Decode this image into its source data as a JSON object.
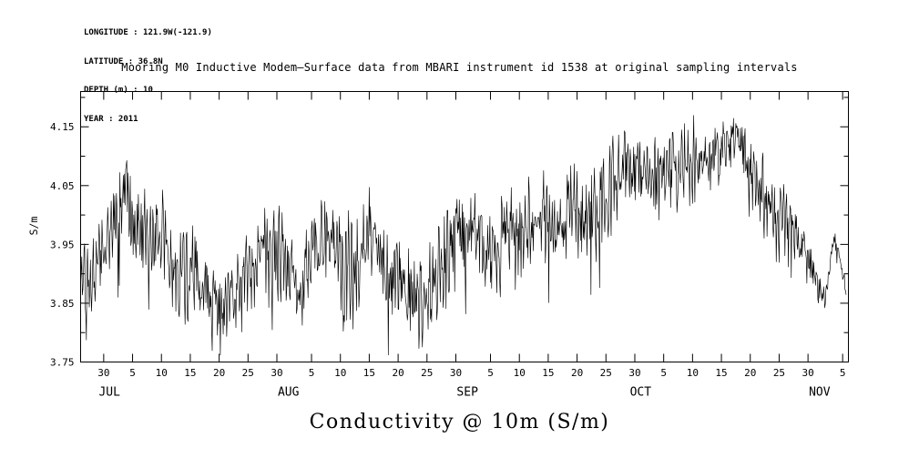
{
  "header": {
    "lines": [
      "LONGITUDE : 121.9W(-121.9)",
      "LATITUDE : 36.8N",
      "DEPTH (m) : 10",
      "YEAR : 2011"
    ]
  },
  "title": "Mooring M0 Inductive Modem—Surface data from MBARI instrument id 1538 at original sampling intervals",
  "caption": "Conductivity @ 10m (S/m)",
  "colors": {
    "line": "#000000",
    "frame": "#000000",
    "text": "#000000",
    "background": "#ffffff"
  },
  "chart_data": {
    "type": "line",
    "title": "Mooring M0 Inductive Modem—Surface data from MBARI instrument id 1538 at original sampling intervals",
    "ylabel": "S/m",
    "xlabel": "Conductivity @ 10m (S/m)",
    "grid": false,
    "legend": false,
    "x_range_days": [
      0,
      133
    ],
    "x_axis_note": "day 0 = 26 JUN 2011, axis ends ~6 NOV 2011",
    "ylim": [
      3.75,
      4.21
    ],
    "y_ticks": [
      {
        "value": 3.75,
        "label": "3.75"
      },
      {
        "value": 3.85,
        "label": "3.85"
      },
      {
        "value": 3.95,
        "label": "3.95"
      },
      {
        "value": 4.05,
        "label": "4.05"
      },
      {
        "value": 4.15,
        "label": "4.15"
      }
    ],
    "y_minor_ticks": [
      3.8,
      3.9,
      4.0,
      4.1,
      4.2
    ],
    "x_ticks": [
      {
        "day": 4,
        "label": "30"
      },
      {
        "day": 9,
        "label": "5"
      },
      {
        "day": 14,
        "label": "10"
      },
      {
        "day": 19,
        "label": "15"
      },
      {
        "day": 24,
        "label": "20"
      },
      {
        "day": 29,
        "label": "25"
      },
      {
        "day": 34,
        "label": "30"
      },
      {
        "day": 40,
        "label": "5"
      },
      {
        "day": 45,
        "label": "10"
      },
      {
        "day": 50,
        "label": "15"
      },
      {
        "day": 55,
        "label": "20"
      },
      {
        "day": 60,
        "label": "25"
      },
      {
        "day": 65,
        "label": "30"
      },
      {
        "day": 71,
        "label": "5"
      },
      {
        "day": 76,
        "label": "10"
      },
      {
        "day": 81,
        "label": "15"
      },
      {
        "day": 86,
        "label": "20"
      },
      {
        "day": 91,
        "label": "25"
      },
      {
        "day": 96,
        "label": "30"
      },
      {
        "day": 101,
        "label": "5"
      },
      {
        "day": 106,
        "label": "10"
      },
      {
        "day": 111,
        "label": "15"
      },
      {
        "day": 116,
        "label": "20"
      },
      {
        "day": 121,
        "label": "25"
      },
      {
        "day": 126,
        "label": "30"
      },
      {
        "day": 132,
        "label": "5"
      }
    ],
    "month_labels": [
      {
        "day": 5,
        "label": "JUL"
      },
      {
        "day": 36,
        "label": "AUG"
      },
      {
        "day": 67,
        "label": "SEP"
      },
      {
        "day": 97,
        "label": "OCT"
      },
      {
        "day": 128,
        "label": "NOV"
      }
    ],
    "series": [
      {
        "name": "Conductivity @ 10m",
        "units": "S/m",
        "trend_day_value_amplitude": [
          [
            0,
            3.89,
            0.05
          ],
          [
            2,
            3.9,
            0.06
          ],
          [
            4,
            3.93,
            0.07
          ],
          [
            6,
            3.99,
            0.08
          ],
          [
            8,
            4.02,
            0.09
          ],
          [
            10,
            3.98,
            0.08
          ],
          [
            12,
            3.96,
            0.08
          ],
          [
            14,
            3.97,
            0.08
          ],
          [
            16,
            3.91,
            0.07
          ],
          [
            18,
            3.89,
            0.07
          ],
          [
            20,
            3.91,
            0.07
          ],
          [
            22,
            3.87,
            0.06
          ],
          [
            24,
            3.84,
            0.06
          ],
          [
            26,
            3.85,
            0.06
          ],
          [
            28,
            3.88,
            0.07
          ],
          [
            30,
            3.91,
            0.07
          ],
          [
            32,
            3.94,
            0.08
          ],
          [
            34,
            3.95,
            0.08
          ],
          [
            36,
            3.92,
            0.08
          ],
          [
            38,
            3.86,
            0.07
          ],
          [
            40,
            3.94,
            0.08
          ],
          [
            42,
            3.97,
            0.07
          ],
          [
            44,
            3.95,
            0.08
          ],
          [
            46,
            3.9,
            0.08
          ],
          [
            48,
            3.91,
            0.08
          ],
          [
            50,
            3.97,
            0.08
          ],
          [
            52,
            3.94,
            0.07
          ],
          [
            54,
            3.9,
            0.08
          ],
          [
            56,
            3.88,
            0.08
          ],
          [
            58,
            3.86,
            0.07
          ],
          [
            60,
            3.86,
            0.07
          ],
          [
            62,
            3.91,
            0.07
          ],
          [
            64,
            3.94,
            0.08
          ],
          [
            66,
            3.96,
            0.08
          ],
          [
            68,
            3.98,
            0.07
          ],
          [
            70,
            3.94,
            0.08
          ],
          [
            72,
            3.93,
            0.08
          ],
          [
            74,
            3.99,
            0.07
          ],
          [
            76,
            3.96,
            0.08
          ],
          [
            78,
            3.97,
            0.08
          ],
          [
            80,
            4.0,
            0.08
          ],
          [
            82,
            3.97,
            0.08
          ],
          [
            84,
            4.0,
            0.08
          ],
          [
            86,
            4.02,
            0.08
          ],
          [
            88,
            4.0,
            0.07
          ],
          [
            90,
            4.02,
            0.07
          ],
          [
            92,
            4.05,
            0.07
          ],
          [
            94,
            4.07,
            0.07
          ],
          [
            96,
            4.08,
            0.06
          ],
          [
            98,
            4.08,
            0.06
          ],
          [
            100,
            4.06,
            0.07
          ],
          [
            102,
            4.06,
            0.07
          ],
          [
            104,
            4.09,
            0.06
          ],
          [
            106,
            4.08,
            0.07
          ],
          [
            108,
            4.09,
            0.06
          ],
          [
            110,
            4.11,
            0.05
          ],
          [
            112,
            4.12,
            0.05
          ],
          [
            114,
            4.13,
            0.05
          ],
          [
            116,
            4.08,
            0.06
          ],
          [
            118,
            4.04,
            0.06
          ],
          [
            120,
            4.0,
            0.06
          ],
          [
            122,
            3.98,
            0.06
          ],
          [
            124,
            3.97,
            0.05
          ],
          [
            126,
            3.93,
            0.04
          ],
          [
            127.5,
            3.88,
            0.025
          ],
          [
            129,
            3.86,
            0.02
          ],
          [
            130.5,
            3.96,
            0.015
          ],
          [
            131.5,
            3.93,
            0.015
          ],
          [
            132.3,
            3.89,
            0.012
          ],
          [
            133,
            3.85,
            0.01
          ]
        ],
        "noise": {
          "samples_per_day": 10,
          "tidal_period_days": 0.52,
          "spring_neap_period_days": 14.76,
          "seed": 1538,
          "sample_end_day": 132.6
        }
      }
    ]
  }
}
